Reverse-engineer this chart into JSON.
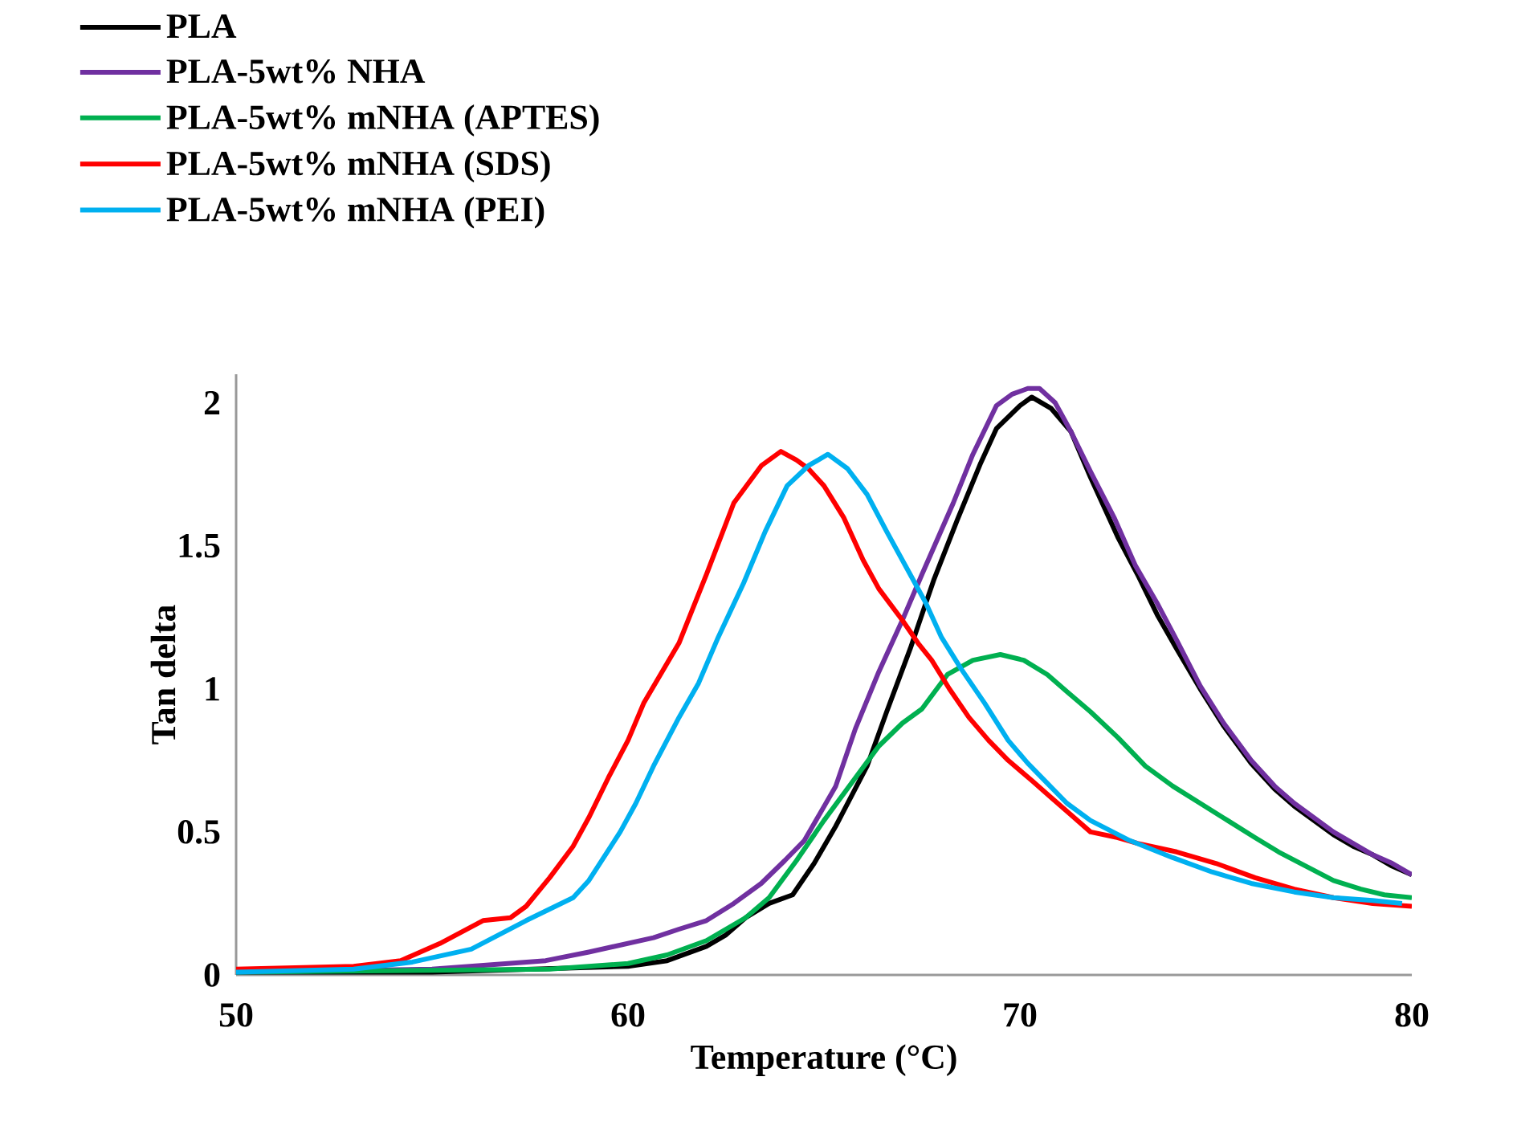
{
  "chart_data": {
    "type": "line",
    "xlabel": "Temperature (°C)",
    "ylabel": "Tan delta",
    "xlim": [
      50,
      80
    ],
    "ylim": [
      0,
      2.1
    ],
    "xticks": [
      50,
      60,
      70,
      80
    ],
    "yticks": [
      0,
      0.5,
      1,
      1.5,
      2
    ],
    "grid": false,
    "legend": "top left",
    "series": [
      {
        "name": "PLA",
        "color": "#000000",
        "x": [
          50,
          55,
          58,
          60,
          61,
          62,
          62.5,
          63,
          63.6,
          64.2,
          64.75,
          65.3,
          66.1,
          66.6,
          67.2,
          67.8,
          68.4,
          69,
          69.4,
          70,
          70.3,
          70.8,
          71.3,
          71.8,
          72.5,
          73,
          73.5,
          74,
          74.6,
          75.2,
          75.9,
          76.5,
          77,
          77.5,
          78,
          78.5,
          79,
          79.5,
          80
        ],
        "values": [
          0.01,
          0.01,
          null,
          0.03,
          0.05,
          0.1,
          0.14,
          0.2,
          0.25,
          0.28,
          0.39,
          0.52,
          0.73,
          0.92,
          1.14,
          1.38,
          1.59,
          1.79,
          1.91,
          1.99,
          2.02,
          1.98,
          1.9,
          1.74,
          1.53,
          1.4,
          1.26,
          1.14,
          1.0,
          0.87,
          0.74,
          0.65,
          0.59,
          0.54,
          0.49,
          0.45,
          0.42,
          0.38,
          0.35
        ]
      },
      {
        "name": "PLA-5wt% NHA",
        "color": "#7030a0",
        "x": [
          50,
          55,
          57.9,
          59,
          60.65,
          61.3,
          62,
          62.7,
          63.4,
          64,
          64.5,
          65.3,
          65.8,
          66.4,
          67,
          67.5,
          68.3,
          68.8,
          69.4,
          69.8,
          70.2,
          70.5,
          70.9,
          71.3,
          71.8,
          72.4,
          72.95,
          73.5,
          74,
          74.6,
          75.2,
          75.9,
          76.5,
          77,
          77.5,
          78,
          78.5,
          79,
          79.5,
          80
        ],
        "values": [
          0.01,
          0.02,
          0.05,
          0.08,
          0.13,
          0.16,
          0.19,
          0.25,
          0.32,
          0.4,
          0.47,
          0.66,
          0.86,
          1.06,
          1.24,
          1.4,
          1.65,
          1.82,
          1.99,
          2.03,
          2.05,
          2.05,
          2.0,
          1.9,
          1.76,
          1.6,
          1.43,
          1.3,
          1.17,
          1.01,
          0.88,
          0.75,
          0.66,
          0.6,
          0.55,
          0.5,
          0.46,
          0.42,
          0.39,
          0.35
        ]
      },
      {
        "name": "PLA-5wt% mNHA (APTES)",
        "color": "#00b050",
        "x": [
          50,
          58,
          60,
          61,
          62,
          63,
          63.6,
          64.3,
          65,
          65.7,
          66.4,
          67,
          67.5,
          68.15,
          68.8,
          69.5,
          70.1,
          70.7,
          71.2,
          71.8,
          72.5,
          73.2,
          73.9,
          74.6,
          75.3,
          76,
          76.6,
          77.3,
          78,
          78.7,
          79.3,
          80
        ],
        "values": [
          0.01,
          0.02,
          0.04,
          0.07,
          0.12,
          0.2,
          0.27,
          0.4,
          0.54,
          0.67,
          0.8,
          0.88,
          0.93,
          1.05,
          1.1,
          1.12,
          1.1,
          1.05,
          0.99,
          0.92,
          0.83,
          0.73,
          0.66,
          0.6,
          0.54,
          0.48,
          0.43,
          0.38,
          0.33,
          0.3,
          0.28,
          0.27
        ]
      },
      {
        "name": "PLA-5wt% mNHA (SDS)",
        "color": "#ff0000",
        "x": [
          50,
          53,
          54.2,
          55.2,
          56.3,
          57,
          57.4,
          58,
          58.6,
          59,
          59.5,
          60,
          60.4,
          61.3,
          62,
          62.7,
          63.4,
          63.9,
          64.3,
          64.6,
          65,
          65.5,
          66,
          66.4,
          67,
          67.4,
          67.75,
          68.2,
          68.7,
          69.2,
          69.7,
          70.3,
          70.8,
          71.3,
          71.8,
          72.5,
          73,
          74,
          75,
          76,
          77,
          78,
          79,
          80
        ],
        "values": [
          0.02,
          0.03,
          0.05,
          0.11,
          0.19,
          0.2,
          0.24,
          0.34,
          0.45,
          0.55,
          0.69,
          0.82,
          0.95,
          1.16,
          1.4,
          1.65,
          1.78,
          1.83,
          1.8,
          1.77,
          1.71,
          1.6,
          1.45,
          1.35,
          1.24,
          1.16,
          1.1,
          1.0,
          0.9,
          0.82,
          0.75,
          0.68,
          0.62,
          0.56,
          0.5,
          0.48,
          0.46,
          0.43,
          0.39,
          0.34,
          0.3,
          0.27,
          0.25,
          0.24
        ]
      },
      {
        "name": "PLA-5wt% mNHA (PEI)",
        "color": "#00b0f0",
        "x": [
          50,
          53,
          54.5,
          56,
          57.4,
          58.6,
          59,
          59.8,
          60.2,
          60.65,
          61.3,
          61.8,
          62.3,
          62.95,
          63.5,
          64.06,
          64.6,
          65.1,
          65.6,
          66.1,
          66.6,
          67.2,
          67.6,
          68,
          68.5,
          69.1,
          69.7,
          70.2,
          70.7,
          71.2,
          71.8,
          72.8,
          73.9,
          74.9,
          75.9,
          77,
          78,
          79,
          79.75
        ],
        "values": [
          0.01,
          0.02,
          0.045,
          0.09,
          0.19,
          0.27,
          0.33,
          0.5,
          0.6,
          0.73,
          0.9,
          1.02,
          1.18,
          1.37,
          1.55,
          1.71,
          1.78,
          1.82,
          1.77,
          1.68,
          1.55,
          1.4,
          1.3,
          1.18,
          1.07,
          0.95,
          0.82,
          0.74,
          0.67,
          0.6,
          0.54,
          0.47,
          0.41,
          0.36,
          0.32,
          0.29,
          0.27,
          0.26,
          0.25
        ]
      }
    ]
  }
}
